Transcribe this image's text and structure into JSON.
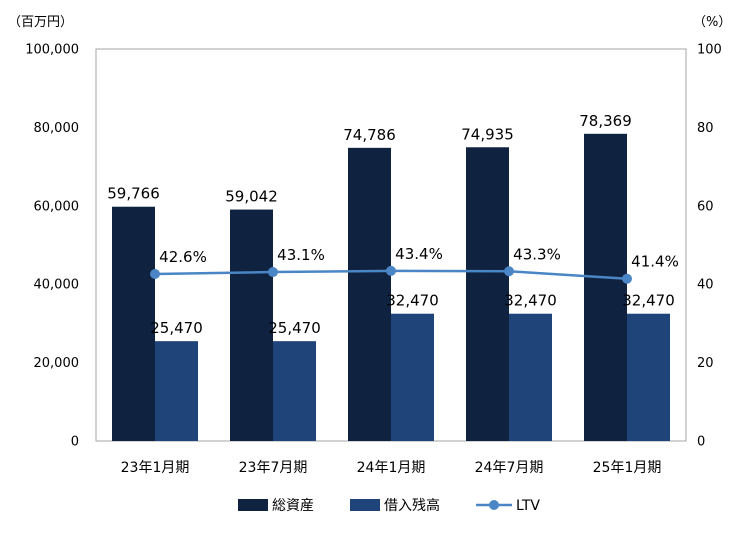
{
  "chart_data": {
    "type": "bar",
    "categories": [
      "23年1月期",
      "23年7月期",
      "24年1月期",
      "24年7月期",
      "25年1月期"
    ],
    "series": [
      {
        "name": "総資産",
        "axis": "left",
        "values": [
          59766,
          59042,
          74786,
          74935,
          78369
        ],
        "labels": [
          "59,766",
          "59,042",
          "74,786",
          "74,935",
          "78,369"
        ],
        "color": "#0f2341"
      },
      {
        "name": "借入残高",
        "axis": "left",
        "values": [
          25470,
          25470,
          32470,
          32470,
          32470
        ],
        "labels": [
          "25,470",
          "25,470",
          "32,470",
          "32,470",
          "32,470"
        ],
        "color": "#1f4479"
      },
      {
        "name": "LTV",
        "type": "line",
        "axis": "right",
        "values": [
          42.6,
          43.1,
          43.4,
          43.3,
          41.4
        ],
        "labels": [
          "42.6%",
          "43.1%",
          "43.4%",
          "43.3%",
          "41.4%"
        ],
        "color": "#4a86c5"
      }
    ],
    "y_left": {
      "unit": "（百万円）",
      "range": [
        0,
        100000
      ],
      "ticks": [
        "0",
        "20,000",
        "40,000",
        "60,000",
        "80,000",
        "100,000"
      ]
    },
    "y_right": {
      "unit": "（%）",
      "range": [
        0,
        100
      ],
      "ticks": [
        "0",
        "20",
        "40",
        "60",
        "80",
        "100"
      ]
    },
    "grid": false,
    "legend_position": "bottom"
  }
}
